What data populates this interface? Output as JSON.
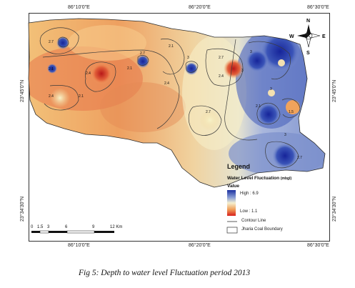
{
  "map": {
    "top_ticks": [
      "86°10'0\"E",
      "86°20'0\"E",
      "86°30'0\"E"
    ],
    "bottom_ticks": [
      "86°10'0\"E",
      "86°20'0\"E",
      "86°30'0\"E"
    ],
    "left_ticks": [
      "23°45'0\"N",
      "23°34'30\"N"
    ],
    "right_ticks": [
      "23°45'0\"N",
      "23°34'30\"N"
    ],
    "contour_labels": [
      "2.7",
      "2.1",
      "2.4",
      "2.1",
      "2.4",
      "2.1",
      "2.4",
      "2.7",
      "2.1",
      "3",
      "2.7",
      "2.4",
      "3",
      "3",
      "2.7",
      "2.1",
      "1.5",
      "3",
      "3",
      "2.7"
    ],
    "compass": {
      "n": "N",
      "s": "S",
      "e": "E",
      "w": "W"
    }
  },
  "legend": {
    "title": "Legend",
    "subtitle": "Water Level Fluctuation",
    "unit": "(mbgl)",
    "value_heading": "Value",
    "high": "High : 6.9",
    "low": "Low : 1.1",
    "contour_line": "Contour Line",
    "boundary": "Jharia Coal Boundary",
    "colors": {
      "high": "#1a2fa0",
      "mid": "#f5f0d0",
      "low": "#d8201c"
    }
  },
  "scale_bar": {
    "labels": [
      "0",
      "1.5",
      "3",
      "6",
      "9",
      "12 Km"
    ]
  },
  "caption": "Fig 5:  Depth to water level Fluctuation period 2013"
}
